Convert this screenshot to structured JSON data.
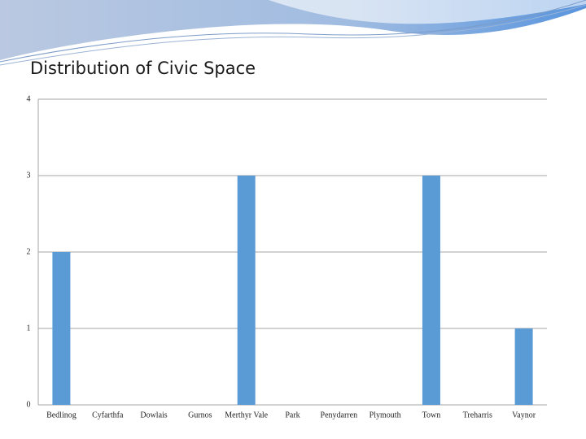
{
  "chart_data": {
    "type": "bar",
    "title": "Distribution of Civic Space",
    "categories": [
      "Bedlinog",
      "Cyfarthfa",
      "Dowlais",
      "Gurnos",
      "Merthyr Vale",
      "Park",
      "Penydarren",
      "Plymouth",
      "Town",
      "Treharris",
      "Vaynor"
    ],
    "values": [
      2,
      0,
      0,
      0,
      3,
      0,
      0,
      0,
      3,
      0,
      1
    ],
    "color": "#5b9bd5",
    "ylim": [
      0,
      4
    ],
    "yticks": [
      0,
      1,
      2,
      3,
      4
    ],
    "grid": true
  }
}
